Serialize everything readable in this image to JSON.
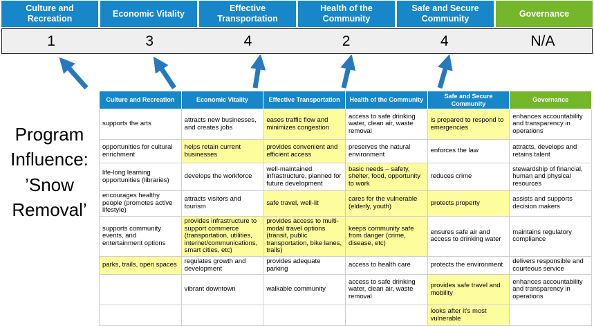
{
  "program_label": "Program Influence: ’Snow Removal’",
  "colors": {
    "blue": "#1787C9",
    "green": "#74B72A",
    "hl": "#FDFD9E",
    "arrow": "#2779BE",
    "scorebg": "#EFEFEF"
  },
  "summary": {
    "categories": [
      {
        "label": "Culture and Recreation",
        "score": "1",
        "color": "blue"
      },
      {
        "label": "Economic Vitality",
        "score": "3",
        "color": "blue"
      },
      {
        "label": "Effective Transportation",
        "score": "4",
        "color": "blue"
      },
      {
        "label": "Health of the Community",
        "score": "2",
        "color": "blue"
      },
      {
        "label": "Safe and Secure Community",
        "score": "4",
        "color": "blue"
      },
      {
        "label": "Governance",
        "score": "N/A",
        "color": "green"
      }
    ]
  },
  "table": {
    "headers": [
      {
        "label": "Culture and Recreation",
        "color": "blue"
      },
      {
        "label": "Economic Vitality",
        "color": "blue"
      },
      {
        "label": "Effective Transportation",
        "color": "blue"
      },
      {
        "label": "Health of the Community",
        "color": "blue"
      },
      {
        "label": "Safe and Secure Community",
        "color": "blue"
      },
      {
        "label": "Governance",
        "color": "green"
      }
    ],
    "rows": [
      [
        {
          "text": "supports the arts",
          "hl": false
        },
        {
          "text": "attracts new businesses, and creates jobs",
          "hl": false
        },
        {
          "text": "eases traffic flow and minimizes congestion",
          "hl": true
        },
        {
          "text": "access to safe drinking water, clean air, waste removal",
          "hl": false
        },
        {
          "text": "is prepared to respond to emergencies",
          "hl": true
        },
        {
          "text": "enhances accountability and transparency in operations",
          "hl": false
        }
      ],
      [
        {
          "text": "opportunities for cultural enrichment",
          "hl": false
        },
        {
          "text": "helps retain current businesses",
          "hl": true
        },
        {
          "text": "provides convenient and efficient access",
          "hl": true
        },
        {
          "text": "preserves the natural environment",
          "hl": false
        },
        {
          "text": "enforces the law",
          "hl": false
        },
        {
          "text": "attracts, develops and retains talent",
          "hl": false
        }
      ],
      [
        {
          "text": "life-long learning opportunities (libraries)",
          "hl": false
        },
        {
          "text": "develops the workforce",
          "hl": false
        },
        {
          "text": "well-maintained infrastructure, planned for future development",
          "hl": false
        },
        {
          "text": "basic needs – safety, shelter, food, opportunity to work",
          "hl": true
        },
        {
          "text": "reduces crime",
          "hl": false
        },
        {
          "text": "stewardship of financial, human and physical resources",
          "hl": false
        }
      ],
      [
        {
          "text": "encourages healthy people (promotes active lifestyle)",
          "hl": false
        },
        {
          "text": "attracts visitors and tourism",
          "hl": false
        },
        {
          "text": "safe travel, well-lit",
          "hl": true
        },
        {
          "text": "cares for the vulnerable (elderly, youth)",
          "hl": true
        },
        {
          "text": "protects property",
          "hl": true
        },
        {
          "text": "assists and supports decision makers",
          "hl": false
        }
      ],
      [
        {
          "text": "supports community events, and entertainment options",
          "hl": false
        },
        {
          "text": "provides infrastructure to support commerce (transportation, utilities, internet/communications, smart cities, etc)",
          "hl": true
        },
        {
          "text": "provides access to multi-modal travel options (transit, public transportation, bike lanes, trails)",
          "hl": true
        },
        {
          "text": "keeps community safe from danger (crime, disease, etc)",
          "hl": true
        },
        {
          "text": "ensures safe air and access to drinking water",
          "hl": false
        },
        {
          "text": "maintains regulatory compliance",
          "hl": false
        }
      ],
      [
        {
          "text": "parks, trails, open spaces",
          "hl": true
        },
        {
          "text": "regulates growth and development",
          "hl": false
        },
        {
          "text": "provides adequate parking",
          "hl": false
        },
        {
          "text": "access to health care",
          "hl": false
        },
        {
          "text": "protects the environment",
          "hl": false
        },
        {
          "text": "delivers responsible and courteous service",
          "hl": false
        }
      ],
      [
        {
          "text": "",
          "hl": false
        },
        {
          "text": "vibrant downtown",
          "hl": false
        },
        {
          "text": "walkable community",
          "hl": false
        },
        {
          "text": "access to safe drinking water, clean air, waste removal",
          "hl": false
        },
        {
          "text": "provides safe travel and mobility",
          "hl": true
        },
        {
          "text": "enhances accountability and transparency in operations",
          "hl": false
        }
      ],
      [
        {
          "text": "",
          "hl": false
        },
        {
          "text": "",
          "hl": false
        },
        {
          "text": "",
          "hl": false
        },
        {
          "text": "",
          "hl": false
        },
        {
          "text": "looks after it's most vulnerable",
          "hl": true
        },
        {
          "text": "",
          "hl": false
        }
      ]
    ]
  }
}
